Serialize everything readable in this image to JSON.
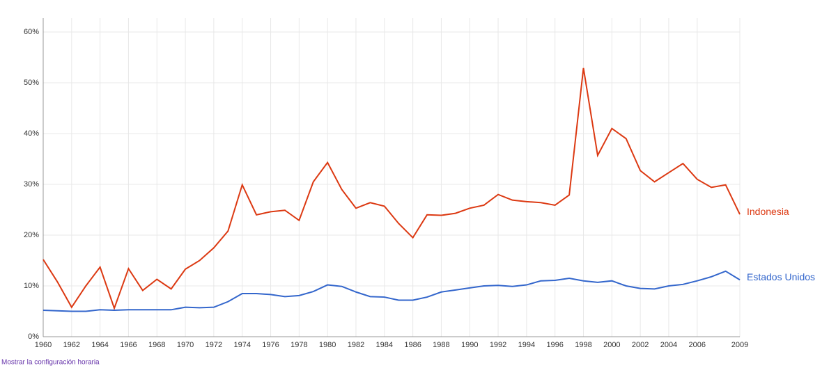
{
  "chart_data": {
    "type": "line",
    "x": [
      1960,
      1961,
      1962,
      1963,
      1964,
      1965,
      1966,
      1967,
      1968,
      1969,
      1970,
      1971,
      1972,
      1973,
      1974,
      1975,
      1976,
      1977,
      1978,
      1979,
      1980,
      1981,
      1982,
      1983,
      1984,
      1985,
      1986,
      1987,
      1988,
      1989,
      1990,
      1991,
      1992,
      1993,
      1994,
      1995,
      1996,
      1997,
      1998,
      1999,
      2000,
      2001,
      2002,
      2003,
      2004,
      2005,
      2006,
      2007,
      2008,
      2009
    ],
    "series": [
      {
        "name": "Indonesia",
        "color": "#dc3912",
        "values": [
          15.2,
          10.8,
          5.8,
          10.0,
          13.7,
          5.6,
          13.4,
          9.1,
          11.3,
          9.4,
          13.3,
          15.0,
          17.5,
          20.8,
          29.9,
          24.0,
          24.6,
          24.9,
          22.9,
          30.5,
          34.3,
          29.0,
          25.3,
          26.4,
          25.7,
          22.3,
          19.5,
          24.0,
          23.9,
          24.3,
          25.3,
          25.9,
          28.0,
          26.9,
          26.6,
          26.4,
          25.9,
          27.9,
          52.9,
          35.7,
          41.0,
          39.0,
          32.7,
          30.5,
          32.3,
          34.1,
          31.0,
          29.4,
          29.9,
          24.1
        ]
      },
      {
        "name": "Estados Unidos",
        "color": "#3366cc",
        "values": [
          5.2,
          5.1,
          5.0,
          5.0,
          5.3,
          5.2,
          5.3,
          5.3,
          5.3,
          5.3,
          5.8,
          5.7,
          5.8,
          6.9,
          8.5,
          8.5,
          8.3,
          7.9,
          8.1,
          8.9,
          10.2,
          9.9,
          8.8,
          7.9,
          7.8,
          7.2,
          7.2,
          7.8,
          8.8,
          9.2,
          9.6,
          10.0,
          10.1,
          9.9,
          10.2,
          11.0,
          11.1,
          11.5,
          11.0,
          10.7,
          11.0,
          10.0,
          9.5,
          9.4,
          10.0,
          10.3,
          11.0,
          11.8,
          12.9,
          11.2
        ]
      }
    ],
    "xlim": [
      1960,
      2009
    ],
    "xticks": [
      1960,
      1962,
      1964,
      1966,
      1968,
      1970,
      1972,
      1974,
      1976,
      1978,
      1980,
      1982,
      1984,
      1986,
      1988,
      1990,
      1992,
      1994,
      1996,
      1998,
      2000,
      2002,
      2004,
      2006,
      2009
    ],
    "ylim": [
      0,
      60
    ],
    "yticks": [
      {
        "value": 0,
        "label": "0%"
      },
      {
        "value": 10,
        "label": "10%"
      },
      {
        "value": 20,
        "label": "20%"
      },
      {
        "value": 30,
        "label": "30%"
      },
      {
        "value": 40,
        "label": "40%"
      },
      {
        "value": 50,
        "label": "50%"
      },
      {
        "value": 60,
        "label": "60%"
      }
    ],
    "grid": true,
    "footer_link": "Mostrar la configuración horaria"
  }
}
